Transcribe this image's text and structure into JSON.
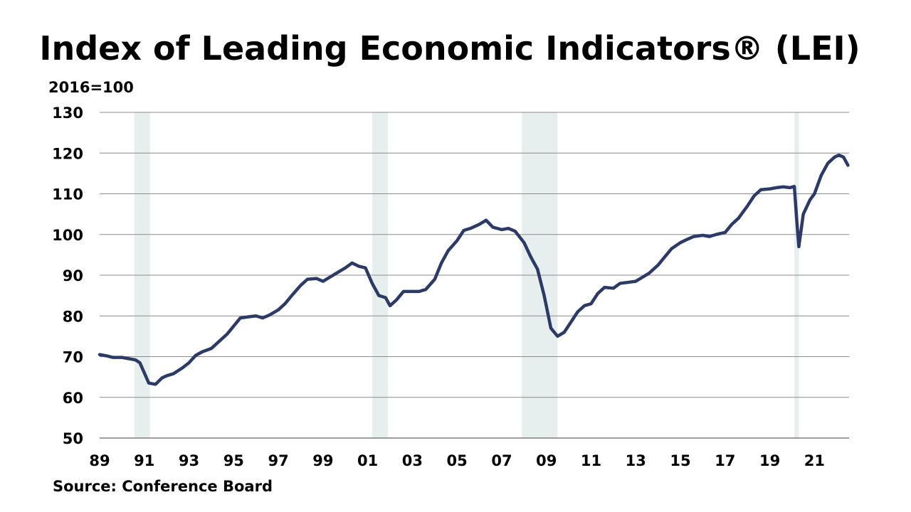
{
  "chart_data": {
    "type": "line",
    "title": "Index of Leading Economic Indicators® (LEI)",
    "unit_label": "2016=100",
    "source": "Source: Conference Board",
    "ylim": [
      50,
      130
    ],
    "y_ticks": [
      50,
      60,
      70,
      80,
      90,
      100,
      110,
      120,
      130
    ],
    "xlim": [
      1989.0,
      2022.55
    ],
    "x_ticks": [
      {
        "label": "89",
        "year": 1989
      },
      {
        "label": "91",
        "year": 1991
      },
      {
        "label": "93",
        "year": 1993
      },
      {
        "label": "95",
        "year": 1995
      },
      {
        "label": "97",
        "year": 1997
      },
      {
        "label": "99",
        "year": 1999
      },
      {
        "label": "01",
        "year": 2001
      },
      {
        "label": "03",
        "year": 2003
      },
      {
        "label": "05",
        "year": 2005
      },
      {
        "label": "07",
        "year": 2007
      },
      {
        "label": "09",
        "year": 2009
      },
      {
        "label": "11",
        "year": 2011
      },
      {
        "label": "13",
        "year": 2013
      },
      {
        "label": "15",
        "year": 2015
      },
      {
        "label": "17",
        "year": 2017
      },
      {
        "label": "19",
        "year": 2019
      },
      {
        "label": "21",
        "year": 2021
      }
    ],
    "grid": true,
    "line_color": "#2b3a67",
    "recession_color": "#e6efee",
    "recessions": [
      {
        "start": 1990.55,
        "end": 1991.25
      },
      {
        "start": 2001.2,
        "end": 2001.9
      },
      {
        "start": 2007.9,
        "end": 2009.5
      },
      {
        "start": 2020.1,
        "end": 2020.3
      }
    ],
    "series": [
      {
        "x": [
          1989.0,
          1989.3,
          1989.6,
          1990.0,
          1990.3,
          1990.6,
          1990.8,
          1991.0,
          1991.2,
          1991.5,
          1991.8,
          1992.0,
          1992.3,
          1992.7,
          1993.0,
          1993.3,
          1993.6,
          1994.0,
          1994.3,
          1994.7,
          1995.0,
          1995.3,
          1995.7,
          1996.0,
          1996.3,
          1996.6,
          1997.0,
          1997.3,
          1997.6,
          1998.0,
          1998.3,
          1998.7,
          1999.0,
          1999.3,
          1999.6,
          2000.0,
          2000.3,
          2000.6,
          2000.9,
          2001.2,
          2001.5,
          2001.8,
          2002.0,
          2002.3,
          2002.6,
          2003.0,
          2003.3,
          2003.6,
          2004.0,
          2004.3,
          2004.6,
          2005.0,
          2005.3,
          2005.6,
          2006.0,
          2006.3,
          2006.6,
          2007.0,
          2007.3,
          2007.6,
          2008.0,
          2008.3,
          2008.6,
          2008.9,
          2009.2,
          2009.5,
          2009.8,
          2010.1,
          2010.4,
          2010.7,
          2011.0,
          2011.3,
          2011.6,
          2012.0,
          2012.3,
          2012.6,
          2013.0,
          2013.3,
          2013.6,
          2014.0,
          2014.3,
          2014.6,
          2015.0,
          2015.3,
          2015.6,
          2016.0,
          2016.3,
          2016.6,
          2017.0,
          2017.3,
          2017.6,
          2018.0,
          2018.3,
          2018.6,
          2019.0,
          2019.3,
          2019.6,
          2019.9,
          2020.1,
          2020.2,
          2020.3,
          2020.5,
          2020.8,
          2021.0,
          2021.3,
          2021.6,
          2021.9,
          2022.1,
          2022.3,
          2022.5
        ],
        "values": [
          70.5,
          70.2,
          69.8,
          69.8,
          69.5,
          69.2,
          68.5,
          66.0,
          63.5,
          63.2,
          64.8,
          65.3,
          65.8,
          67.2,
          68.5,
          70.3,
          71.2,
          72.0,
          73.5,
          75.5,
          77.5,
          79.5,
          79.8,
          80.0,
          79.5,
          80.2,
          81.5,
          83.0,
          85.0,
          87.5,
          89.0,
          89.2,
          88.5,
          89.5,
          90.5,
          91.8,
          93.0,
          92.2,
          91.8,
          88.0,
          85.0,
          84.5,
          82.5,
          84.0,
          86.0,
          86.0,
          86.0,
          86.5,
          89.0,
          93.0,
          96.0,
          98.5,
          101.0,
          101.5,
          102.5,
          103.5,
          101.8,
          101.2,
          101.5,
          100.8,
          98.0,
          94.5,
          91.5,
          85.0,
          77.0,
          75.0,
          76.0,
          78.5,
          81.0,
          82.5,
          83.0,
          85.5,
          87.0,
          86.8,
          88.0,
          88.2,
          88.5,
          89.5,
          90.5,
          92.5,
          94.5,
          96.5,
          98.0,
          98.8,
          99.5,
          99.8,
          99.5,
          100.0,
          100.5,
          102.5,
          104.0,
          107.0,
          109.5,
          111.0,
          111.2,
          111.5,
          111.7,
          111.5,
          111.8,
          104.0,
          97.0,
          105.0,
          108.5,
          110.0,
          114.5,
          117.5,
          119.0,
          119.5,
          119.0,
          117.0
        ]
      }
    ]
  }
}
